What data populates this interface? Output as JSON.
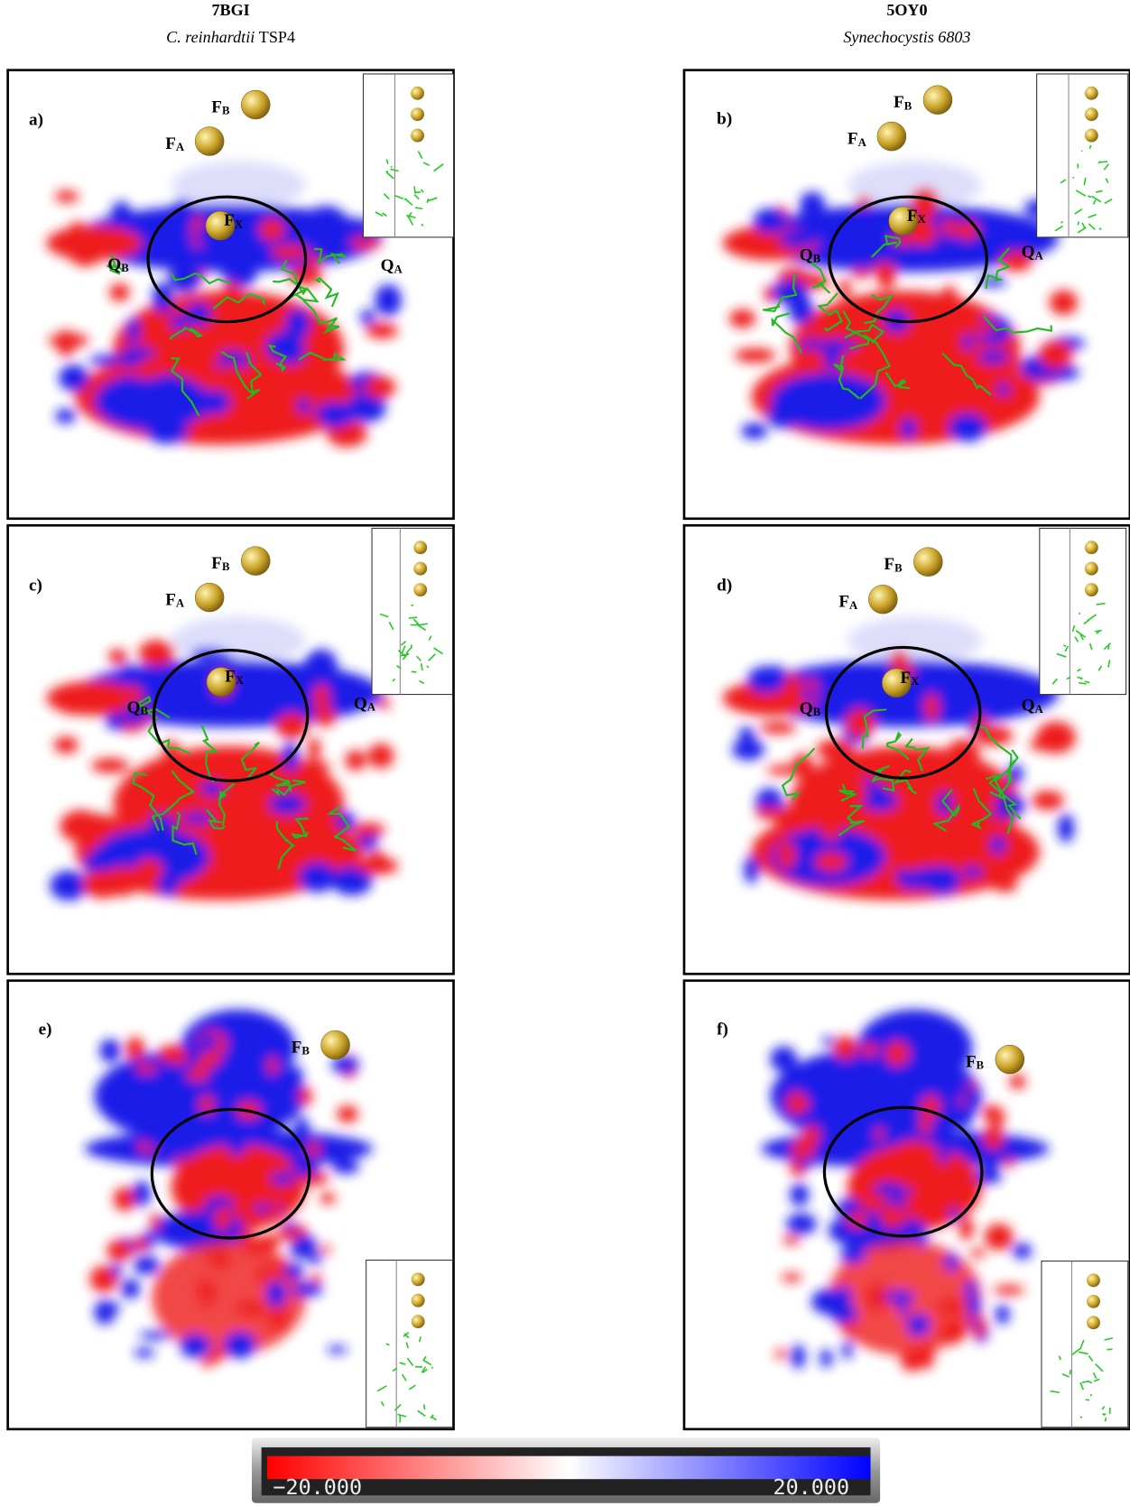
{
  "columns": [
    {
      "title": "7BGI",
      "organism": "C. reinhardtii",
      "strain": "TSP4"
    },
    {
      "title": "5OY0",
      "organism": "Synechocystis 6803"
    }
  ],
  "panels": [
    {
      "label": "a)",
      "sites": [
        {
          "base": "F",
          "sub": "B"
        },
        {
          "base": "F",
          "sub": "A"
        },
        {
          "base": "F",
          "sub": "X"
        },
        {
          "base": "Q",
          "sub": "B"
        },
        {
          "base": "Q",
          "sub": "A"
        }
      ]
    },
    {
      "label": "b)",
      "sites": [
        {
          "base": "F",
          "sub": "B"
        },
        {
          "base": "F",
          "sub": "A"
        },
        {
          "base": "F",
          "sub": "X"
        },
        {
          "base": "Q",
          "sub": "B"
        },
        {
          "base": "Q",
          "sub": "A"
        }
      ]
    },
    {
      "label": "c)",
      "sites": [
        {
          "base": "F",
          "sub": "B"
        },
        {
          "base": "F",
          "sub": "A"
        },
        {
          "base": "F",
          "sub": "X"
        },
        {
          "base": "Q",
          "sub": "B"
        },
        {
          "base": "Q",
          "sub": "A"
        }
      ]
    },
    {
      "label": "d)",
      "sites": [
        {
          "base": "F",
          "sub": "B"
        },
        {
          "base": "F",
          "sub": "A"
        },
        {
          "base": "F",
          "sub": "X"
        },
        {
          "base": "Q",
          "sub": "B"
        },
        {
          "base": "Q",
          "sub": "A"
        }
      ]
    },
    {
      "label": "e)",
      "sites": [
        {
          "base": "F",
          "sub": "B"
        }
      ]
    },
    {
      "label": "f)",
      "sites": [
        {
          "base": "F",
          "sub": "B"
        }
      ]
    }
  ],
  "colorbar": {
    "min_label": "−20.000",
    "max_label": "20.000"
  }
}
